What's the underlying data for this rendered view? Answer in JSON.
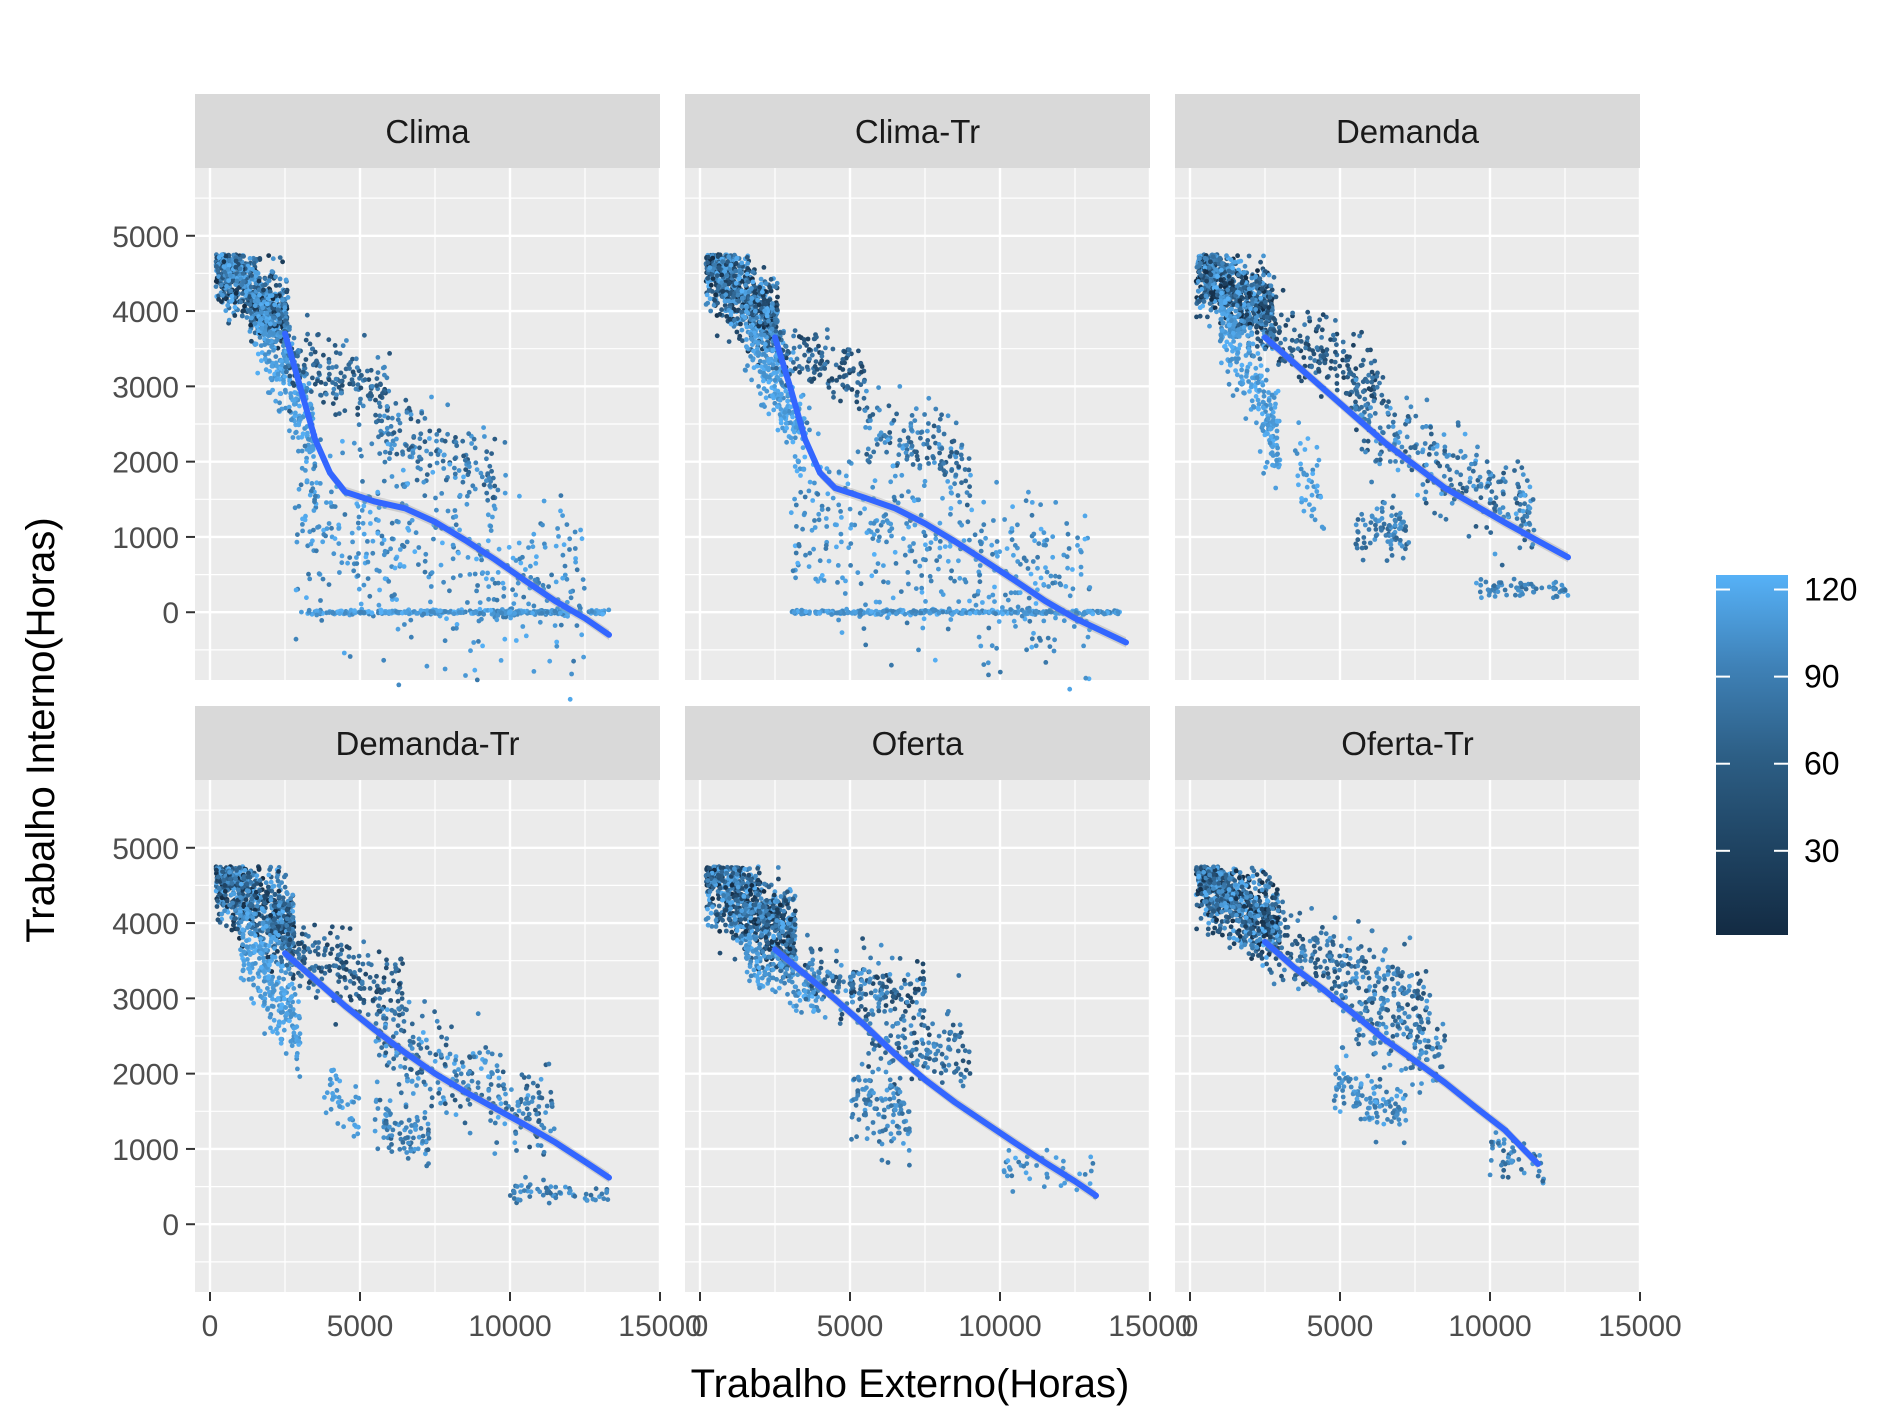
{
  "chart_data": {
    "type": "scatter",
    "facets": [
      "Clima",
      "Clima-Tr",
      "Demanda",
      "Demanda-Tr",
      "Oferta",
      "Oferta-Tr"
    ],
    "xlabel": "Trabalho Externo(Horas)",
    "ylabel": "Trabalho Interno(Horas)",
    "xlim": [
      -500,
      15000
    ],
    "ylim": [
      -900,
      5900
    ],
    "x_ticks": [
      0,
      5000,
      10000,
      15000
    ],
    "y_ticks": [
      0,
      1000,
      2000,
      3000,
      4000,
      5000
    ],
    "x_tick_labels": [
      "0",
      "5000",
      "10000",
      "15000"
    ],
    "y_tick_labels": [
      "0",
      "1000",
      "2000",
      "3000",
      "4000",
      "5000"
    ],
    "legend": {
      "position": "right",
      "ticks": [
        "120",
        "90",
        "60",
        "30"
      ],
      "tick_values": [
        120,
        90,
        60,
        30
      ],
      "range": [
        1,
        125
      ]
    },
    "colors": {
      "low": "#132B43",
      "high": "#56B1F7",
      "smooth": "#3366FF",
      "panel_bg": "#EBEBEB",
      "strip_bg": "#D9D9D9",
      "grid": "#FFFFFF"
    },
    "smooth_lines": {
      "Clima": [
        [
          2500,
          3700
        ],
        [
          3000,
          3000
        ],
        [
          3500,
          2300
        ],
        [
          4000,
          1850
        ],
        [
          4500,
          1600
        ],
        [
          5500,
          1470
        ],
        [
          6500,
          1380
        ],
        [
          7500,
          1200
        ],
        [
          8500,
          960
        ],
        [
          9500,
          700
        ],
        [
          10500,
          420
        ],
        [
          11500,
          150
        ],
        [
          12500,
          -80
        ],
        [
          13300,
          -300
        ]
      ],
      "Clima-Tr": [
        [
          2500,
          3650
        ],
        [
          3000,
          3000
        ],
        [
          3500,
          2300
        ],
        [
          4000,
          1850
        ],
        [
          4500,
          1650
        ],
        [
          5500,
          1520
        ],
        [
          6500,
          1380
        ],
        [
          7500,
          1180
        ],
        [
          8500,
          940
        ],
        [
          9500,
          680
        ],
        [
          10500,
          420
        ],
        [
          11500,
          150
        ],
        [
          12500,
          -80
        ],
        [
          14200,
          -400
        ]
      ],
      "Demanda": [
        [
          2500,
          3650
        ],
        [
          3500,
          3300
        ],
        [
          4500,
          2950
        ],
        [
          5500,
          2600
        ],
        [
          6500,
          2250
        ],
        [
          7500,
          1950
        ],
        [
          8500,
          1650
        ],
        [
          9500,
          1420
        ],
        [
          10500,
          1190
        ],
        [
          11500,
          970
        ],
        [
          12600,
          730
        ]
      ],
      "Demanda-Tr": [
        [
          2500,
          3600
        ],
        [
          3500,
          3250
        ],
        [
          4500,
          2900
        ],
        [
          5500,
          2580
        ],
        [
          6500,
          2280
        ],
        [
          7500,
          2000
        ],
        [
          8500,
          1760
        ],
        [
          9500,
          1540
        ],
        [
          10500,
          1320
        ],
        [
          11500,
          1090
        ],
        [
          12500,
          830
        ],
        [
          13300,
          620
        ]
      ],
      "Oferta": [
        [
          2500,
          3650
        ],
        [
          3500,
          3320
        ],
        [
          4500,
          2990
        ],
        [
          5500,
          2640
        ],
        [
          6500,
          2260
        ],
        [
          7500,
          1920
        ],
        [
          8500,
          1620
        ],
        [
          9500,
          1350
        ],
        [
          10500,
          1080
        ],
        [
          11500,
          820
        ],
        [
          12500,
          570
        ],
        [
          13200,
          380
        ]
      ],
      "Oferta-Tr": [
        [
          2500,
          3750
        ],
        [
          3500,
          3400
        ],
        [
          4500,
          3100
        ],
        [
          5500,
          2780
        ],
        [
          6500,
          2450
        ],
        [
          7500,
          2170
        ],
        [
          8500,
          1880
        ],
        [
          9500,
          1560
        ],
        [
          10500,
          1250
        ],
        [
          11600,
          800
        ]
      ]
    },
    "point_clusters": {
      "Clima": [
        {
          "x": [
            200,
            2600
          ],
          "y_line": [
            4600,
            3850
          ],
          "spread": 260,
          "n": 700,
          "c": [
            1,
            125
          ]
        },
        {
          "x": [
            1500,
            3500
          ],
          "y_line": [
            3900,
            2300
          ],
          "spread": 300,
          "n": 250,
          "c": [
            90,
            125
          ]
        },
        {
          "x": [
            2500,
            6000
          ],
          "y_line": [
            3400,
            2900
          ],
          "spread": 250,
          "n": 180,
          "c": [
            30,
            90
          ]
        },
        {
          "x": [
            5500,
            9500
          ],
          "y_line": [
            2500,
            1800
          ],
          "spread": 250,
          "n": 150,
          "c": [
            40,
            110
          ]
        },
        {
          "x": [
            2800,
            12500
          ],
          "y_line": [
            1200,
            200
          ],
          "spread": 600,
          "n": 420,
          "c": [
            70,
            125
          ]
        },
        {
          "x": [
            3000,
            13300
          ],
          "y_line": [
            0,
            0
          ],
          "spread": 15,
          "n": 300,
          "c": [
            80,
            125
          ]
        }
      ],
      "Clima-Tr": [
        {
          "x": [
            200,
            2600
          ],
          "y_line": [
            4600,
            3850
          ],
          "spread": 260,
          "n": 700,
          "c": [
            1,
            125
          ]
        },
        {
          "x": [
            1500,
            3500
          ],
          "y_line": [
            3900,
            2300
          ],
          "spread": 300,
          "n": 250,
          "c": [
            90,
            125
          ]
        },
        {
          "x": [
            2500,
            5500
          ],
          "y_line": [
            3500,
            3100
          ],
          "spread": 200,
          "n": 140,
          "c": [
            20,
            80
          ]
        },
        {
          "x": [
            5500,
            9000
          ],
          "y_line": [
            2500,
            1900
          ],
          "spread": 250,
          "n": 140,
          "c": [
            40,
            110
          ]
        },
        {
          "x": [
            3000,
            13000
          ],
          "y_line": [
            1300,
            200
          ],
          "spread": 600,
          "n": 420,
          "c": [
            70,
            125
          ]
        },
        {
          "x": [
            3000,
            14000
          ],
          "y_line": [
            0,
            0
          ],
          "spread": 15,
          "n": 300,
          "c": [
            80,
            125
          ]
        }
      ],
      "Demanda": [
        {
          "x": [
            200,
            2800
          ],
          "y_line": [
            4600,
            3900
          ],
          "spread": 260,
          "n": 700,
          "c": [
            1,
            125
          ]
        },
        {
          "x": [
            1000,
            3000
          ],
          "y_line": [
            3900,
            2300
          ],
          "spread": 300,
          "n": 250,
          "c": [
            90,
            125
          ]
        },
        {
          "x": [
            2500,
            6500
          ],
          "y_line": [
            3800,
            3000
          ],
          "spread": 250,
          "n": 200,
          "c": [
            20,
            80
          ]
        },
        {
          "x": [
            5500,
            11500
          ],
          "y_line": [
            2600,
            1300
          ],
          "spread": 300,
          "n": 280,
          "c": [
            40,
            120
          ]
        },
        {
          "x": [
            3500,
            4500
          ],
          "y_line": [
            1900,
            1400
          ],
          "spread": 250,
          "n": 40,
          "c": [
            90,
            125
          ]
        },
        {
          "x": [
            5500,
            7300
          ],
          "y_line": [
            1100,
            1000
          ],
          "spread": 200,
          "n": 90,
          "c": [
            50,
            110
          ]
        },
        {
          "x": [
            9500,
            12600
          ],
          "y_line": [
            320,
            300
          ],
          "spread": 60,
          "n": 60,
          "c": [
            60,
            110
          ]
        }
      ],
      "Demanda-Tr": [
        {
          "x": [
            200,
            2800
          ],
          "y_line": [
            4650,
            3900
          ],
          "spread": 260,
          "n": 700,
          "c": [
            1,
            125
          ]
        },
        {
          "x": [
            1000,
            3000
          ],
          "y_line": [
            3900,
            2500
          ],
          "spread": 300,
          "n": 250,
          "c": [
            90,
            125
          ]
        },
        {
          "x": [
            2500,
            6500
          ],
          "y_line": [
            3700,
            3000
          ],
          "spread": 250,
          "n": 200,
          "c": [
            20,
            80
          ]
        },
        {
          "x": [
            5500,
            11500
          ],
          "y_line": [
            2600,
            1300
          ],
          "spread": 300,
          "n": 280,
          "c": [
            40,
            120
          ]
        },
        {
          "x": [
            3800,
            5000
          ],
          "y_line": [
            1900,
            1500
          ],
          "spread": 250,
          "n": 40,
          "c": [
            90,
            125
          ]
        },
        {
          "x": [
            5500,
            7300
          ],
          "y_line": [
            1400,
            1100
          ],
          "spread": 200,
          "n": 90,
          "c": [
            50,
            110
          ]
        },
        {
          "x": [
            10000,
            13300
          ],
          "y_line": [
            450,
            380
          ],
          "spread": 80,
          "n": 60,
          "c": [
            60,
            110
          ]
        }
      ],
      "Oferta": [
        {
          "x": [
            200,
            3200
          ],
          "y_line": [
            4600,
            3800
          ],
          "spread": 280,
          "n": 800,
          "c": [
            1,
            125
          ]
        },
        {
          "x": [
            1500,
            4000
          ],
          "y_line": [
            3600,
            3000
          ],
          "spread": 200,
          "n": 150,
          "c": [
            80,
            125
          ]
        },
        {
          "x": [
            3500,
            7500
          ],
          "y_line": [
            3300,
            3000
          ],
          "spread": 200,
          "n": 200,
          "c": [
            20,
            110
          ]
        },
        {
          "x": [
            5500,
            9000
          ],
          "y_line": [
            2500,
            2200
          ],
          "spread": 250,
          "n": 150,
          "c": [
            30,
            100
          ]
        },
        {
          "x": [
            5000,
            7000
          ],
          "y_line": [
            1700,
            1400
          ],
          "spread": 250,
          "n": 110,
          "c": [
            60,
            110
          ]
        },
        {
          "x": [
            10000,
            13200
          ],
          "y_line": [
            800,
            600
          ],
          "spread": 150,
          "n": 40,
          "c": [
            70,
            120
          ]
        }
      ],
      "Oferta-Tr": [
        {
          "x": [
            200,
            3000
          ],
          "y_line": [
            4600,
            3900
          ],
          "spread": 260,
          "n": 750,
          "c": [
            1,
            125
          ]
        },
        {
          "x": [
            3000,
            8000
          ],
          "y_line": [
            3700,
            3000
          ],
          "spread": 250,
          "n": 250,
          "c": [
            30,
            110
          ]
        },
        {
          "x": [
            5500,
            8500
          ],
          "y_line": [
            2700,
            2300
          ],
          "spread": 250,
          "n": 130,
          "c": [
            40,
            110
          ]
        },
        {
          "x": [
            4800,
            7200
          ],
          "y_line": [
            1800,
            1500
          ],
          "spread": 200,
          "n": 110,
          "c": [
            70,
            120
          ]
        },
        {
          "x": [
            10000,
            11800
          ],
          "y_line": [
            950,
            700
          ],
          "spread": 150,
          "n": 45,
          "c": [
            50,
            110
          ]
        }
      ]
    }
  }
}
